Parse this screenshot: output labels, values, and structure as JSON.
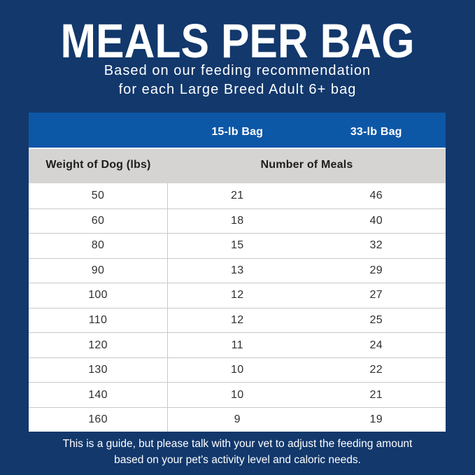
{
  "page": {
    "background_color": "#12386c",
    "accent_blue": "#0d57a7",
    "header_gray": "#d5d4d2",
    "divider_color": "#c9c9c9",
    "text_dark": "#303030",
    "text_white": "#ffffff"
  },
  "header": {
    "title": "MEALS PER BAG",
    "subtitle_line1": "Based on our feeding recommendation",
    "subtitle_line2": "for each Large Breed Adult 6+ bag"
  },
  "footer": {
    "line1": "This is a guide, but please talk with your vet to adjust the feeding amount",
    "line2": "based on your pet's activity level and caloric needs."
  },
  "chart_data": {
    "type": "table",
    "title": "Meals per Bag",
    "bag_column_headers": [
      "15-lb Bag",
      "33-lb Bag"
    ],
    "weight_header": "Weight of Dog (lbs)",
    "meals_header": "Number of Meals",
    "rows": [
      [
        "50",
        "21",
        "46"
      ],
      [
        "60",
        "18",
        "40"
      ],
      [
        "80",
        "15",
        "32"
      ],
      [
        "90",
        "13",
        "29"
      ],
      [
        "100",
        "12",
        "27"
      ],
      [
        "110",
        "12",
        "25"
      ],
      [
        "120",
        "11",
        "24"
      ],
      [
        "130",
        "10",
        "22"
      ],
      [
        "140",
        "10",
        "21"
      ],
      [
        "160",
        "9",
        "19"
      ]
    ]
  }
}
